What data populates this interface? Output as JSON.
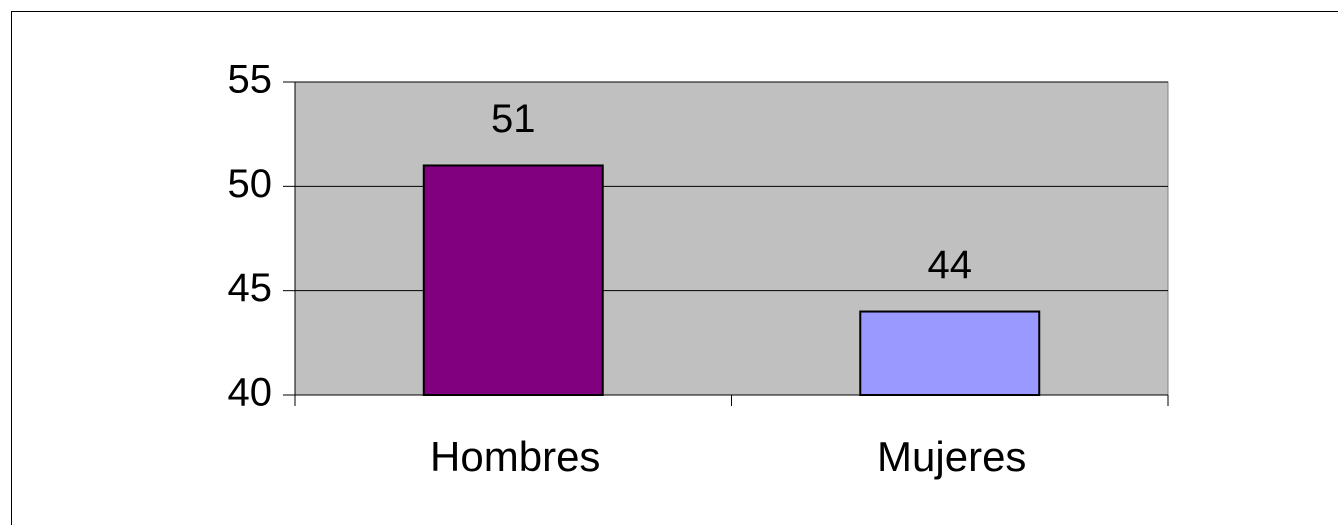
{
  "chart_data": {
    "type": "bar",
    "categories": [
      "Hombres",
      "Mujeres"
    ],
    "values": [
      51,
      44
    ],
    "colors": [
      "#800080",
      "#9999ff"
    ],
    "ylim": [
      40,
      55
    ],
    "yticks": [
      40,
      45,
      50,
      55
    ],
    "grid": true
  }
}
